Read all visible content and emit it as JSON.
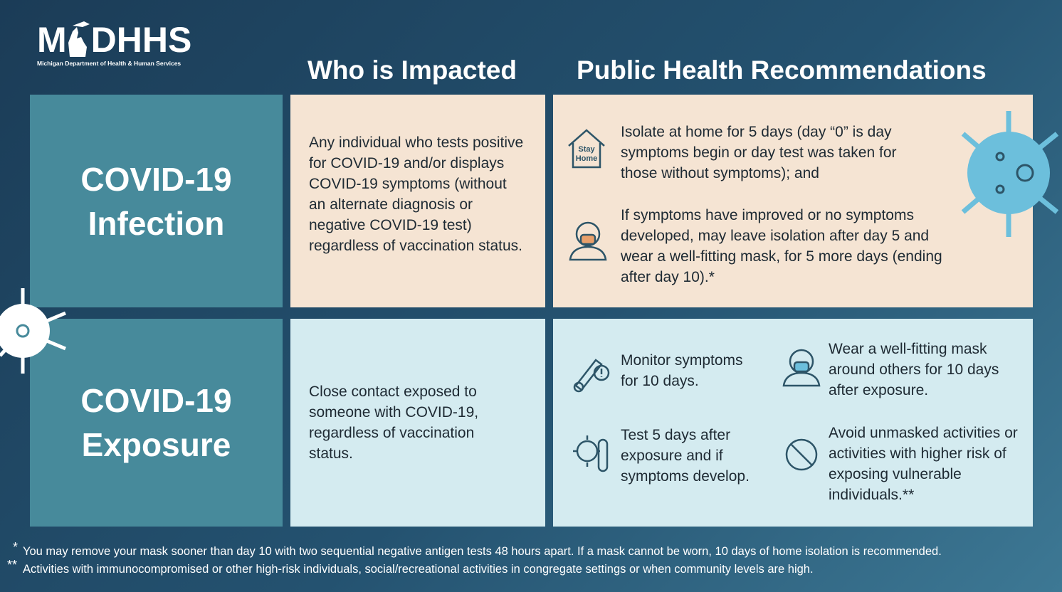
{
  "logo": {
    "left": "M",
    "right": "DHHS",
    "subtitle": "Michigan Department of Health & Human Services"
  },
  "headers": [
    "Who is Impacted",
    "Public Health Recommendations"
  ],
  "rows": [
    {
      "label": [
        "COVID-19",
        "Infection"
      ],
      "who": "Any individual who tests positive for COVID-19 and/or displays COVID-19 symptoms (without an alternate diagnosis or negative COVID-19 test) regardless of vaccination status.",
      "recommendations": [
        {
          "icon_text": [
            "Stay",
            "Home"
          ],
          "text": "Isolate at home for 5 days (day “0” is day symptoms begin or day test was taken for those without symptoms); and"
        },
        {
          "text": "If symptoms have improved or no symptoms developed, may leave isolation after day 5 and wear a well-fitting mask, for 5 more days (ending after day 10).*"
        }
      ]
    },
    {
      "label": [
        "COVID-19",
        "Exposure"
      ],
      "who": "Close contact exposed to someone with COVID-19, regardless of vaccination status.",
      "recommendations": [
        {
          "text": "Monitor symptoms for 10 days."
        },
        {
          "text": "Wear a well-fitting mask around others for 10 days after exposure."
        },
        {
          "text": "Test 5 days after exposure and if symptoms develop."
        },
        {
          "text": "Avoid unmasked activities or activities with higher risk of exposing vulnerable individuals.**"
        }
      ]
    }
  ],
  "footnotes": [
    {
      "mark": "*",
      "text": "You may remove your mask sooner than day 10 with two sequential negative antigen tests 48 hours apart. If a mask cannot be worn, 10 days of home isolation is recommended."
    },
    {
      "mark": "**",
      "text": "Activities with immunocompromised or other high-risk individuals, social/recreational activities in congregate settings or when community levels are high."
    }
  ]
}
